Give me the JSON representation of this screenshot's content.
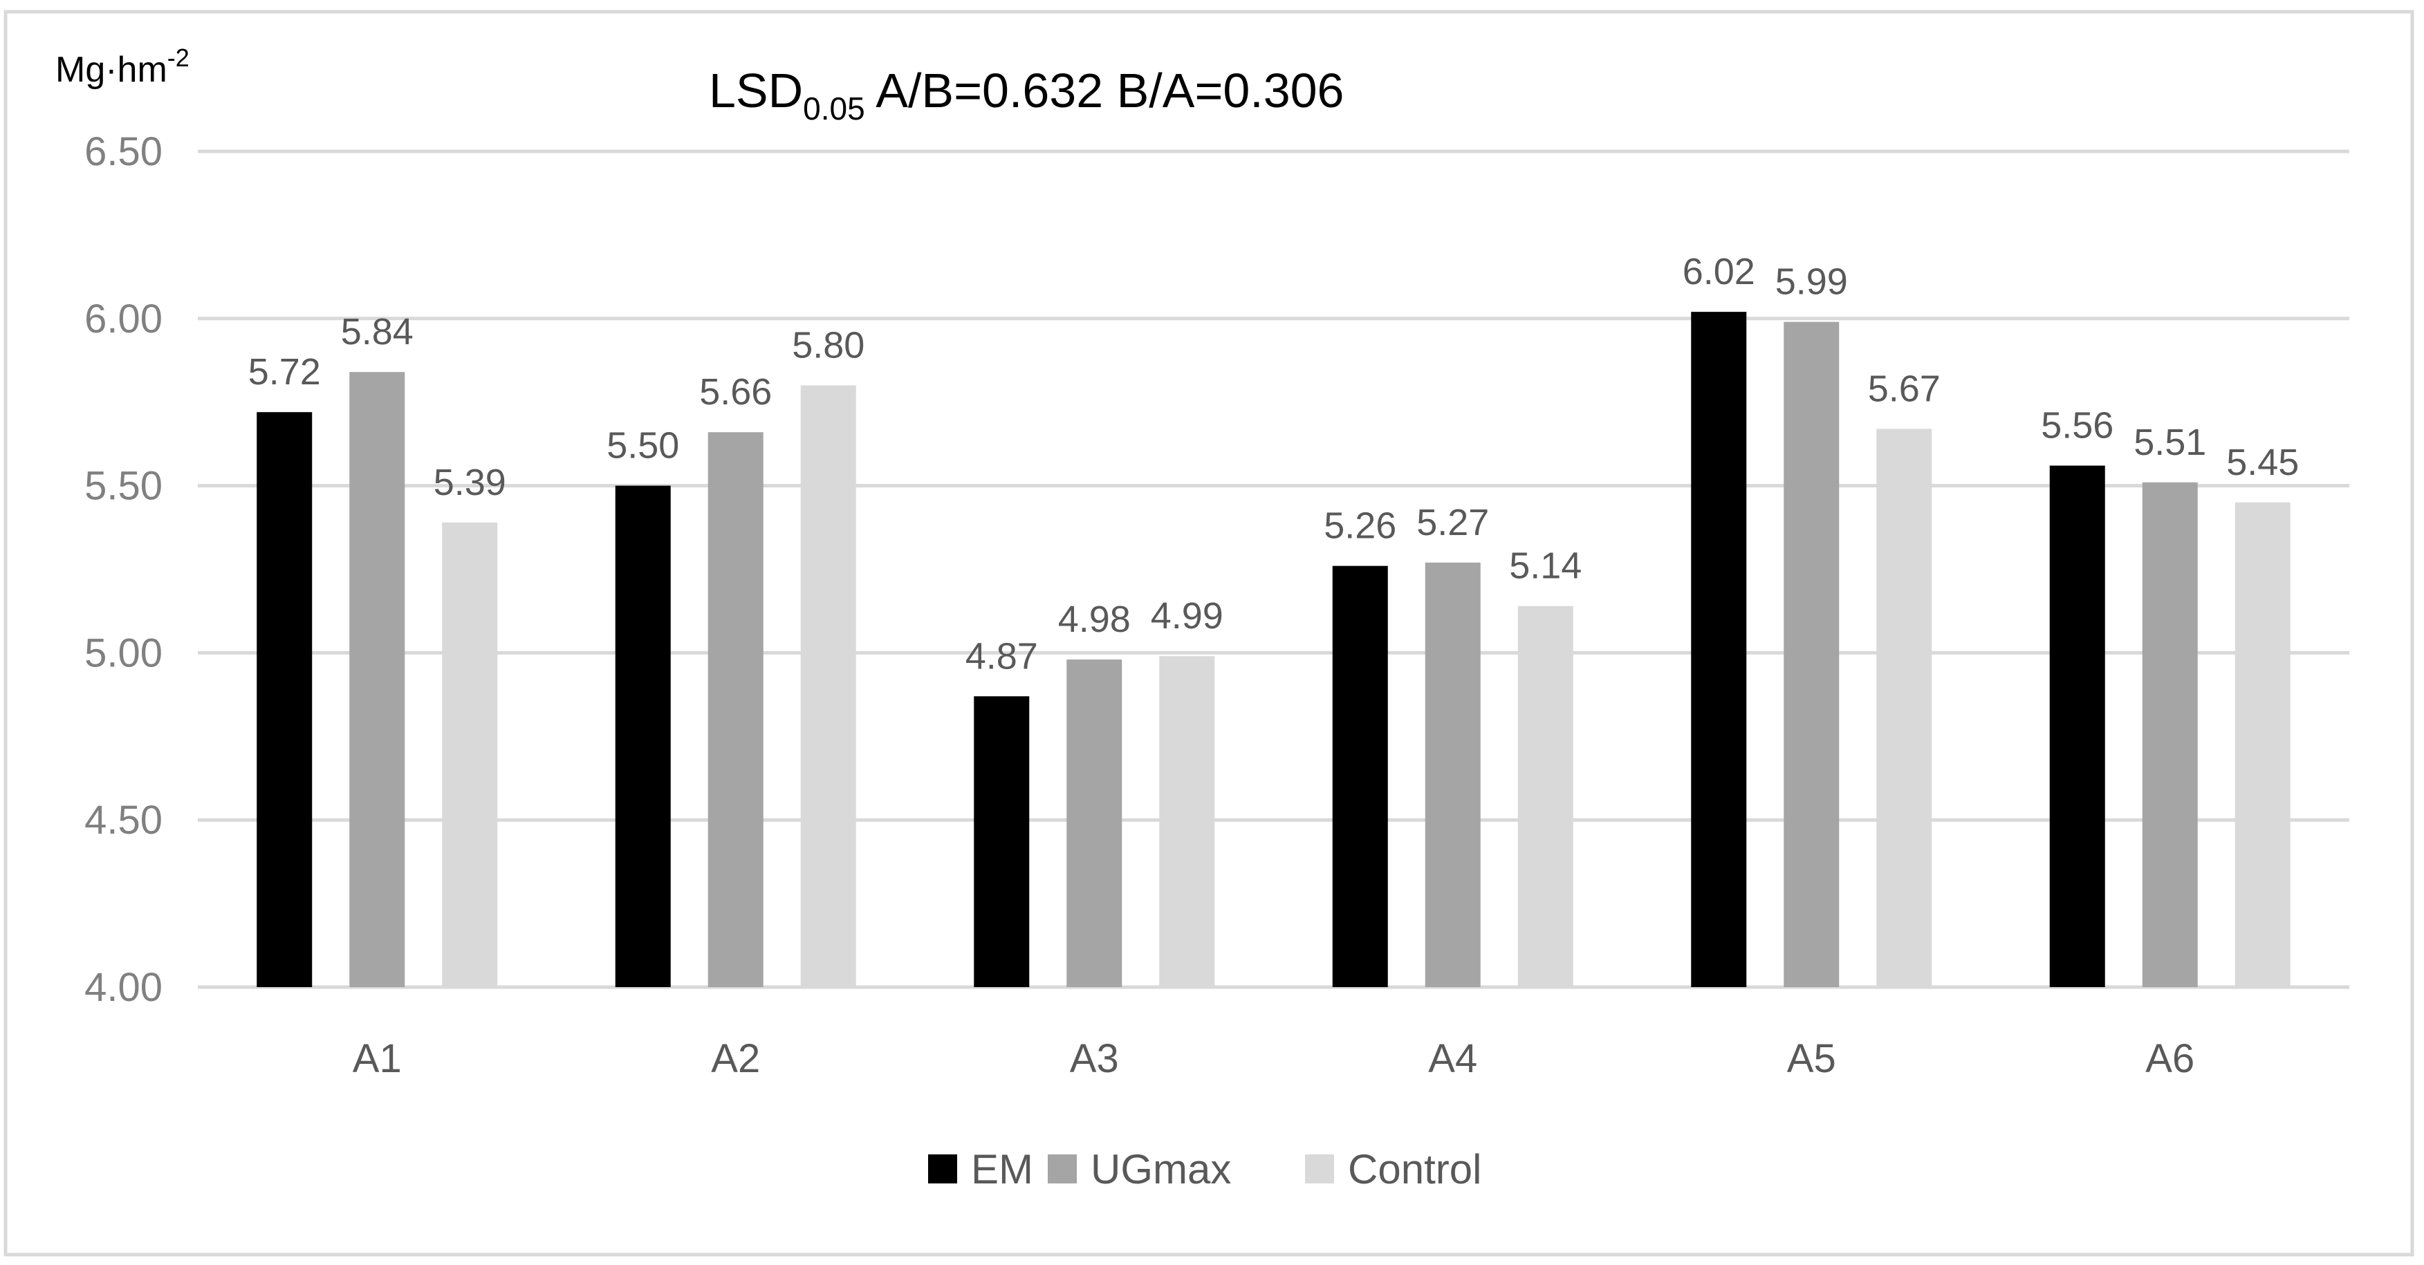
{
  "chart_data": {
    "type": "bar",
    "title_main": "LSD",
    "title_sub": "0.05",
    "title_rest": " A/B=0.632 B/A=0.306",
    "ylabel_base": "Mg·hm",
    "ylabel_sup": "-2",
    "xlabel": "",
    "ylim": [
      4.0,
      6.5
    ],
    "yticks": [
      "4.00",
      "4.50",
      "5.00",
      "5.50",
      "6.00",
      "6.50"
    ],
    "grid": true,
    "legend_position": "bottom",
    "categories": [
      "A1",
      "A2",
      "A3",
      "A4",
      "A5",
      "A6"
    ],
    "series": [
      {
        "name": "EM",
        "color": "#000000",
        "values": [
          5.72,
          5.5,
          4.87,
          5.26,
          6.02,
          5.56
        ],
        "labels": [
          "5.72",
          "5.50",
          "4.87",
          "5.26",
          "6.02",
          "5.56"
        ]
      },
      {
        "name": "UGmax",
        "color": "#a5a5a5",
        "values": [
          5.84,
          5.66,
          4.98,
          5.27,
          5.99,
          5.51
        ],
        "labels": [
          "5.84",
          "5.66",
          "4.98",
          "5.27",
          "5.99",
          "5.51"
        ]
      },
      {
        "name": "Control",
        "color": "#d9d9d9",
        "values": [
          5.39,
          5.8,
          4.99,
          5.14,
          5.67,
          5.45
        ],
        "labels": [
          "5.39",
          "5.80",
          "4.99",
          "5.14",
          "5.67",
          "5.45"
        ]
      }
    ]
  }
}
